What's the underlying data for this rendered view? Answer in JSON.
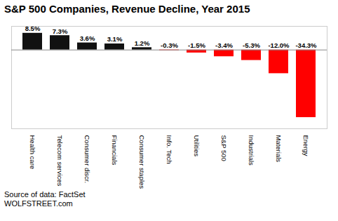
{
  "chart_data": {
    "type": "bar",
    "title": "S&P 500 Companies, Revenue Decline, Year 2015",
    "categories": [
      "Health care",
      "Telecom services",
      "Consumer discr.",
      "Financials",
      "Consumer staples",
      "Info. Tech",
      "Utilities",
      "S&P 500",
      "Industrials",
      "Materials",
      "Energy"
    ],
    "values": [
      8.5,
      7.3,
      3.6,
      3.1,
      1.2,
      -0.3,
      -1.5,
      -3.4,
      -5.3,
      -12.0,
      -34.3
    ],
    "value_labels": [
      "8.5%",
      "7.3%",
      "3.6%",
      "3.1%",
      "1.2%",
      "-0.3%",
      "-1.5%",
      "-3.4%",
      "-5.3%",
      "-12.0%",
      "-34.3%"
    ],
    "colors": [
      "#111111",
      "#111111",
      "#111111",
      "#111111",
      "#111111",
      "#ff0000",
      "#ff0000",
      "#ff0000",
      "#ff0000",
      "#ff0000",
      "#ff0000"
    ],
    "ylim": [
      -40,
      12
    ],
    "grid": false,
    "data_labels": true,
    "tick_labels": "x",
    "annotations": [
      "Source of data: FactSet",
      "WOLFSTREET.com"
    ]
  }
}
